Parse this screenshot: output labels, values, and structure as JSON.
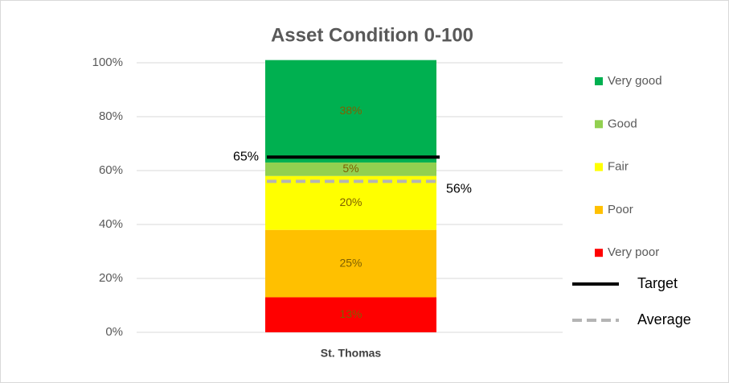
{
  "chart_data": {
    "type": "stacked_bar",
    "title": "Asset Condition 0-100",
    "categories": [
      "St. Thomas"
    ],
    "series": [
      {
        "name": "Very poor",
        "color": "#ff0000",
        "values": [
          13
        ],
        "value_labels": [
          "13%"
        ]
      },
      {
        "name": "Poor",
        "color": "#ffc000",
        "values": [
          25
        ],
        "value_labels": [
          "25%"
        ]
      },
      {
        "name": "Fair",
        "color": "#ffff00",
        "values": [
          20
        ],
        "value_labels": [
          "20%"
        ]
      },
      {
        "name": "Good",
        "color": "#92d050",
        "values": [
          5
        ],
        "value_labels": [
          "5%"
        ]
      },
      {
        "name": "Very good",
        "color": "#00b050",
        "values": [
          38
        ],
        "value_labels": [
          "38%"
        ]
      }
    ],
    "lines": [
      {
        "name": "Target",
        "color": "#000000",
        "dash": false,
        "values": [
          65
        ],
        "value_labels": [
          "65%"
        ]
      },
      {
        "name": "Average",
        "color": "#b4b4b4",
        "dash": true,
        "values": [
          56
        ],
        "value_labels": [
          "56%"
        ]
      }
    ],
    "ylim": [
      0,
      100
    ],
    "yticks": [
      {
        "value": 0,
        "label": "0%"
      },
      {
        "value": 20,
        "label": "20%"
      },
      {
        "value": 40,
        "label": "40%"
      },
      {
        "value": 60,
        "label": "60%"
      },
      {
        "value": 80,
        "label": "80%"
      },
      {
        "value": 100,
        "label": "100%"
      }
    ],
    "legend": "right"
  }
}
